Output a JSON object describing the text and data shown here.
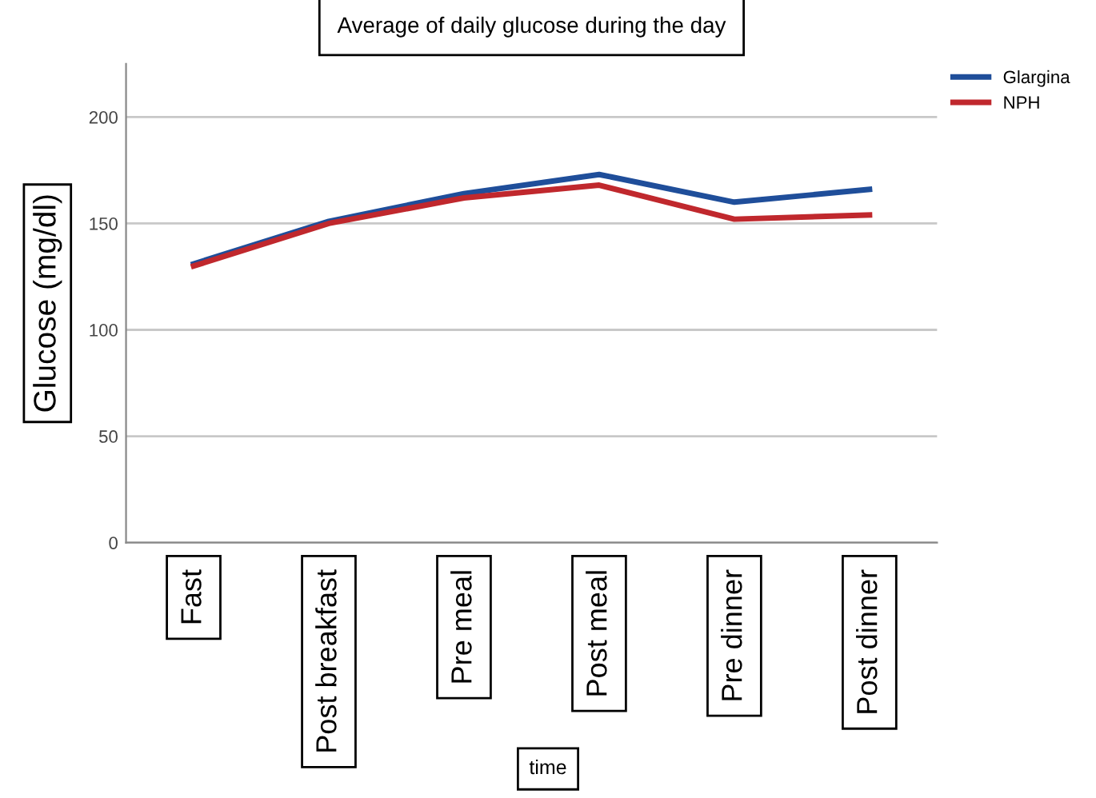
{
  "chart_data": {
    "type": "line",
    "title": "Average of daily glucose during the day",
    "xlabel": "time",
    "ylabel": "Glucose (mg/dl)",
    "categories": [
      "Fast",
      "Post breakfast",
      "Pre meal",
      "Post meal",
      "Pre dinner",
      "Post dinner"
    ],
    "series": [
      {
        "name": "Glargina",
        "color": "#1f4e9a",
        "values": [
          131,
          151,
          164,
          173,
          160,
          166
        ]
      },
      {
        "name": "NPH",
        "color": "#c0282d",
        "values": [
          130,
          150,
          162,
          168,
          152,
          154
        ]
      }
    ],
    "ylim": [
      0,
      225
    ],
    "yticks": [
      0,
      50,
      100,
      150,
      200
    ],
    "grid": "y",
    "legend": "top right",
    "marker": "none",
    "line_style": "solid"
  }
}
